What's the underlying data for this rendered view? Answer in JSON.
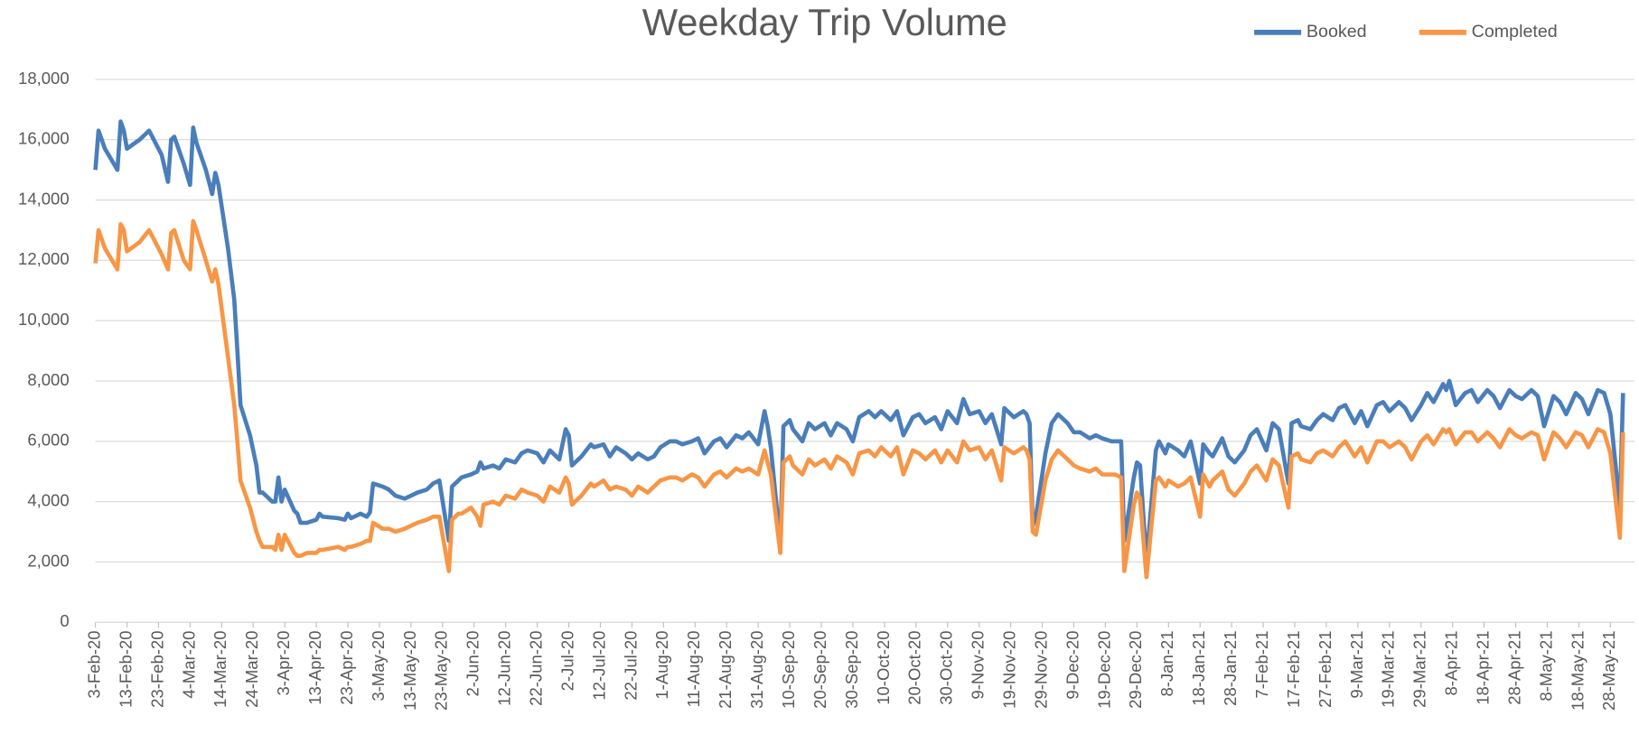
{
  "chart_data": {
    "type": "line",
    "title": "Weekday Trip Volume",
    "x": [
      "2020-02-03",
      "2020-02-04",
      "2020-02-06",
      "2020-02-10",
      "2020-02-11",
      "2020-02-12",
      "2020-02-13",
      "2020-02-17",
      "2020-02-20",
      "2020-02-24",
      "2020-02-26",
      "2020-02-27",
      "2020-02-28",
      "2020-03-02",
      "2020-03-04",
      "2020-03-05",
      "2020-03-06",
      "2020-03-09",
      "2020-03-11",
      "2020-03-12",
      "2020-03-13",
      "2020-03-16",
      "2020-03-18",
      "2020-03-19",
      "2020-03-20",
      "2020-03-23",
      "2020-03-25",
      "2020-03-26",
      "2020-03-27",
      "2020-03-30",
      "2020-03-31",
      "2020-04-01",
      "2020-04-02",
      "2020-04-03",
      "2020-04-06",
      "2020-04-07",
      "2020-04-08",
      "2020-04-10",
      "2020-04-13",
      "2020-04-14",
      "2020-04-15",
      "2020-04-20",
      "2020-04-22",
      "2020-04-23",
      "2020-04-24",
      "2020-04-27",
      "2020-04-29",
      "2020-04-30",
      "2020-05-01",
      "2020-05-04",
      "2020-05-06",
      "2020-05-08",
      "2020-05-11",
      "2020-05-13",
      "2020-05-15",
      "2020-05-18",
      "2020-05-20",
      "2020-05-22",
      "2020-05-25",
      "2020-05-26",
      "2020-05-28",
      "2020-05-29",
      "2020-06-01",
      "2020-06-03",
      "2020-06-04",
      "2020-06-05",
      "2020-06-08",
      "2020-06-10",
      "2020-06-12",
      "2020-06-15",
      "2020-06-17",
      "2020-06-19",
      "2020-06-22",
      "2020-06-24",
      "2020-06-26",
      "2020-06-29",
      "2020-07-01",
      "2020-07-02",
      "2020-07-03",
      "2020-07-06",
      "2020-07-09",
      "2020-07-10",
      "2020-07-13",
      "2020-07-15",
      "2020-07-17",
      "2020-07-20",
      "2020-07-22",
      "2020-07-24",
      "2020-07-27",
      "2020-07-29",
      "2020-07-31",
      "2020-08-03",
      "2020-08-05",
      "2020-08-07",
      "2020-08-10",
      "2020-08-12",
      "2020-08-14",
      "2020-08-17",
      "2020-08-19",
      "2020-08-21",
      "2020-08-24",
      "2020-08-26",
      "2020-08-28",
      "2020-08-31",
      "2020-09-02",
      "2020-09-03",
      "2020-09-04",
      "2020-09-07",
      "2020-09-08",
      "2020-09-10",
      "2020-09-11",
      "2020-09-14",
      "2020-09-16",
      "2020-09-18",
      "2020-09-21",
      "2020-09-23",
      "2020-09-25",
      "2020-09-28",
      "2020-09-30",
      "2020-10-02",
      "2020-10-05",
      "2020-10-07",
      "2020-10-09",
      "2020-10-12",
      "2020-10-14",
      "2020-10-16",
      "2020-10-19",
      "2020-10-21",
      "2020-10-23",
      "2020-10-26",
      "2020-10-28",
      "2020-10-30",
      "2020-11-02",
      "2020-11-04",
      "2020-11-06",
      "2020-11-09",
      "2020-11-11",
      "2020-11-13",
      "2020-11-16",
      "2020-11-17",
      "2020-11-20",
      "2020-11-23",
      "2020-11-24",
      "2020-11-25",
      "2020-11-26",
      "2020-11-27",
      "2020-11-30",
      "2020-12-02",
      "2020-12-04",
      "2020-12-07",
      "2020-12-09",
      "2020-12-11",
      "2020-12-14",
      "2020-12-16",
      "2020-12-18",
      "2020-12-21",
      "2020-12-22",
      "2020-12-24",
      "2020-12-25",
      "2020-12-28",
      "2020-12-29",
      "2020-12-30",
      "2021-01-01",
      "2021-01-04",
      "2021-01-05",
      "2021-01-07",
      "2021-01-08",
      "2021-01-11",
      "2021-01-13",
      "2021-01-15",
      "2021-01-18",
      "2021-01-19",
      "2021-01-21",
      "2021-01-22",
      "2021-01-25",
      "2021-01-27",
      "2021-01-29",
      "2021-02-01",
      "2021-02-03",
      "2021-02-05",
      "2021-02-08",
      "2021-02-10",
      "2021-02-12",
      "2021-02-15",
      "2021-02-16",
      "2021-02-18",
      "2021-02-19",
      "2021-02-22",
      "2021-02-24",
      "2021-02-26",
      "2021-03-01",
      "2021-03-03",
      "2021-03-05",
      "2021-03-08",
      "2021-03-10",
      "2021-03-12",
      "2021-03-15",
      "2021-03-17",
      "2021-03-19",
      "2021-03-22",
      "2021-03-24",
      "2021-03-26",
      "2021-03-29",
      "2021-03-31",
      "2021-04-02",
      "2021-04-05",
      "2021-04-06",
      "2021-04-07",
      "2021-04-09",
      "2021-04-12",
      "2021-04-14",
      "2021-04-16",
      "2021-04-19",
      "2021-04-21",
      "2021-04-23",
      "2021-04-26",
      "2021-04-28",
      "2021-04-30",
      "2021-05-03",
      "2021-05-05",
      "2021-05-07",
      "2021-05-10",
      "2021-05-12",
      "2021-05-14",
      "2021-05-17",
      "2021-05-19",
      "2021-05-21",
      "2021-05-24",
      "2021-05-26",
      "2021-05-28",
      "2021-05-31",
      "2021-06-01"
    ],
    "series": [
      {
        "name": "Booked",
        "color": "#4a7ebb",
        "values": [
          15000,
          16300,
          15700,
          15000,
          16600,
          16300,
          15700,
          16000,
          16300,
          15500,
          14600,
          16000,
          16100,
          15200,
          14500,
          16400,
          15900,
          15000,
          14200,
          14900,
          14500,
          12400,
          10700,
          9000,
          7200,
          6200,
          5200,
          4300,
          4300,
          4000,
          4000,
          4800,
          4000,
          4400,
          3700,
          3600,
          3300,
          3300,
          3400,
          3600,
          3500,
          3450,
          3400,
          3600,
          3450,
          3600,
          3500,
          3650,
          4600,
          4500,
          4400,
          4200,
          4100,
          4200,
          4300,
          4400,
          4600,
          4700,
          2700,
          4500,
          4700,
          4800,
          4900,
          5000,
          5300,
          5100,
          5200,
          5100,
          5400,
          5300,
          5600,
          5700,
          5600,
          5300,
          5700,
          5400,
          6400,
          6200,
          5200,
          5500,
          5900,
          5800,
          5900,
          5500,
          5800,
          5600,
          5400,
          5600,
          5400,
          5500,
          5800,
          6000,
          6000,
          5900,
          6000,
          6100,
          5600,
          6000,
          6100,
          5800,
          6200,
          6100,
          6300,
          5900,
          7000,
          6500,
          5800,
          2600,
          6500,
          6700,
          6400,
          6000,
          6600,
          6400,
          6600,
          6200,
          6600,
          6400,
          6000,
          6800,
          7000,
          6800,
          7000,
          6700,
          7000,
          6200,
          6800,
          6900,
          6600,
          6800,
          6400,
          7000,
          6600,
          7400,
          6900,
          7000,
          6600,
          6900,
          5900,
          7100,
          6800,
          7000,
          6900,
          6600,
          3200,
          3500,
          5600,
          6600,
          6900,
          6600,
          6300,
          6300,
          6100,
          6200,
          6100,
          6000,
          6000,
          6000,
          2700,
          4800,
          5300,
          5200,
          2000,
          5700,
          6000,
          5600,
          5900,
          5700,
          5500,
          6000,
          4600,
          5900,
          5600,
          5500,
          6100,
          5500,
          5300,
          5700,
          6200,
          6400,
          5700,
          6600,
          6400,
          4600,
          6600,
          6700,
          6500,
          6400,
          6700,
          6900,
          6700,
          7100,
          7200,
          6600,
          7000,
          6500,
          7200,
          7300,
          7000,
          7300,
          7100,
          6700,
          7200,
          7600,
          7300,
          7900,
          7700,
          8000,
          7200,
          7600,
          7700,
          7300,
          7700,
          7500,
          7100,
          7700,
          7500,
          7400,
          7700,
          7500,
          6500,
          7500,
          7300,
          6900,
          7600,
          7400,
          6900,
          7700,
          7600,
          6900,
          3800,
          7600
        ]
      },
      {
        "name": "Completed",
        "color": "#f79646",
        "values": [
          11900,
          13000,
          12400,
          11700,
          13200,
          13000,
          12300,
          12600,
          13000,
          12200,
          11700,
          12900,
          13000,
          12000,
          11700,
          13300,
          13000,
          12000,
          11300,
          11700,
          11200,
          8800,
          7200,
          6000,
          4700,
          3800,
          3000,
          2700,
          2500,
          2500,
          2400,
          2900,
          2400,
          2900,
          2300,
          2200,
          2200,
          2300,
          2300,
          2400,
          2400,
          2500,
          2400,
          2500,
          2500,
          2600,
          2700,
          2700,
          3300,
          3100,
          3100,
          3000,
          3100,
          3200,
          3300,
          3400,
          3500,
          3500,
          1700,
          3400,
          3600,
          3600,
          3800,
          3500,
          3200,
          3900,
          4000,
          3900,
          4200,
          4100,
          4400,
          4300,
          4200,
          4000,
          4500,
          4300,
          4800,
          4600,
          3900,
          4200,
          4600,
          4500,
          4700,
          4400,
          4500,
          4400,
          4200,
          4500,
          4300,
          4500,
          4700,
          4800,
          4800,
          4700,
          4900,
          4800,
          4500,
          4900,
          5000,
          4800,
          5100,
          5000,
          5100,
          4900,
          5700,
          5300,
          4900,
          2300,
          5300,
          5500,
          5200,
          4900,
          5400,
          5200,
          5400,
          5100,
          5500,
          5300,
          4900,
          5600,
          5700,
          5500,
          5800,
          5500,
          5800,
          4900,
          5700,
          5600,
          5400,
          5700,
          5300,
          5700,
          5300,
          6000,
          5700,
          5800,
          5400,
          5700,
          4700,
          5800,
          5600,
          5800,
          5700,
          5400,
          3000,
          2900,
          4700,
          5400,
          5700,
          5400,
          5200,
          5100,
          5000,
          5100,
          4900,
          4900,
          4900,
          4800,
          1700,
          3900,
          4300,
          4100,
          1500,
          4700,
          4800,
          4500,
          4700,
          4500,
          4600,
          4800,
          3500,
          4900,
          4500,
          4700,
          5000,
          4400,
          4200,
          4600,
          5000,
          5200,
          4700,
          5400,
          5200,
          3800,
          5500,
          5600,
          5400,
          5300,
          5600,
          5700,
          5500,
          5800,
          6000,
          5500,
          5800,
          5300,
          6000,
          6000,
          5800,
          6000,
          5800,
          5400,
          6000,
          6200,
          5900,
          6400,
          6300,
          6400,
          5900,
          6300,
          6300,
          6000,
          6300,
          6100,
          5800,
          6400,
          6200,
          6100,
          6300,
          6200,
          5400,
          6300,
          6100,
          5800,
          6300,
          6200,
          5800,
          6400,
          6300,
          5600,
          2800,
          6300
        ]
      }
    ],
    "xlim": [
      "2020-02-03",
      "2021-06-02"
    ],
    "xticks": [
      {
        "value": "2020-02-03",
        "label": "3-Feb-20"
      },
      {
        "value": "2020-02-13",
        "label": "13-Feb-20"
      },
      {
        "value": "2020-02-23",
        "label": "23-Feb-20"
      },
      {
        "value": "2020-03-04",
        "label": "4-Mar-20"
      },
      {
        "value": "2020-03-14",
        "label": "14-Mar-20"
      },
      {
        "value": "2020-03-24",
        "label": "24-Mar-20"
      },
      {
        "value": "2020-04-03",
        "label": "3-Apr-20"
      },
      {
        "value": "2020-04-13",
        "label": "13-Apr-20"
      },
      {
        "value": "2020-04-23",
        "label": "23-Apr-20"
      },
      {
        "value": "2020-05-03",
        "label": "3-May-20"
      },
      {
        "value": "2020-05-13",
        "label": "13-May-20"
      },
      {
        "value": "2020-05-23",
        "label": "23-May-20"
      },
      {
        "value": "2020-06-02",
        "label": "2-Jun-20"
      },
      {
        "value": "2020-06-12",
        "label": "12-Jun-20"
      },
      {
        "value": "2020-06-22",
        "label": "22-Jun-20"
      },
      {
        "value": "2020-07-02",
        "label": "2-Jul-20"
      },
      {
        "value": "2020-07-12",
        "label": "12-Jul-20"
      },
      {
        "value": "2020-07-22",
        "label": "22-Jul-20"
      },
      {
        "value": "2020-08-01",
        "label": "1-Aug-20"
      },
      {
        "value": "2020-08-11",
        "label": "11-Aug-20"
      },
      {
        "value": "2020-08-21",
        "label": "21-Aug-20"
      },
      {
        "value": "2020-08-31",
        "label": "31-Aug-20"
      },
      {
        "value": "2020-09-10",
        "label": "10-Sep-20"
      },
      {
        "value": "2020-09-20",
        "label": "20-Sep-20"
      },
      {
        "value": "2020-09-30",
        "label": "30-Sep-20"
      },
      {
        "value": "2020-10-10",
        "label": "10-Oct-20"
      },
      {
        "value": "2020-10-20",
        "label": "20-Oct-20"
      },
      {
        "value": "2020-10-30",
        "label": "30-Oct-20"
      },
      {
        "value": "2020-11-09",
        "label": "9-Nov-20"
      },
      {
        "value": "2020-11-19",
        "label": "19-Nov-20"
      },
      {
        "value": "2020-11-29",
        "label": "29-Nov-20"
      },
      {
        "value": "2020-12-09",
        "label": "9-Dec-20"
      },
      {
        "value": "2020-12-19",
        "label": "19-Dec-20"
      },
      {
        "value": "2020-12-29",
        "label": "29-Dec-20"
      },
      {
        "value": "2021-01-08",
        "label": "8-Jan-21"
      },
      {
        "value": "2021-01-18",
        "label": "18-Jan-21"
      },
      {
        "value": "2021-01-28",
        "label": "28-Jan-21"
      },
      {
        "value": "2021-02-07",
        "label": "7-Feb-21"
      },
      {
        "value": "2021-02-17",
        "label": "17-Feb-21"
      },
      {
        "value": "2021-02-27",
        "label": "27-Feb-21"
      },
      {
        "value": "2021-03-09",
        "label": "9-Mar-21"
      },
      {
        "value": "2021-03-19",
        "label": "19-Mar-21"
      },
      {
        "value": "2021-03-29",
        "label": "29-Mar-21"
      },
      {
        "value": "2021-04-08",
        "label": "8-Apr-21"
      },
      {
        "value": "2021-04-18",
        "label": "18-Apr-21"
      },
      {
        "value": "2021-04-28",
        "label": "28-Apr-21"
      },
      {
        "value": "2021-05-08",
        "label": "8-May-21"
      },
      {
        "value": "2021-05-18",
        "label": "18-May-21"
      },
      {
        "value": "2021-05-28",
        "label": "28-May-21"
      }
    ],
    "ylim": [
      0,
      18000
    ],
    "yticks": [
      0,
      {
        "value": 2000,
        "label": "2,000"
      },
      {
        "value": 4000,
        "label": "4,000"
      },
      {
        "value": 6000,
        "label": "6,000"
      },
      {
        "value": 8000,
        "label": "8,000"
      },
      {
        "value": 10000,
        "label": "10,000"
      },
      {
        "value": 12000,
        "label": "12,000"
      },
      {
        "value": 14000,
        "label": "14,000"
      },
      {
        "value": 16000,
        "label": "16,000"
      },
      {
        "value": 18000,
        "label": "18,000"
      }
    ],
    "grid": true,
    "legend": "top-right"
  }
}
